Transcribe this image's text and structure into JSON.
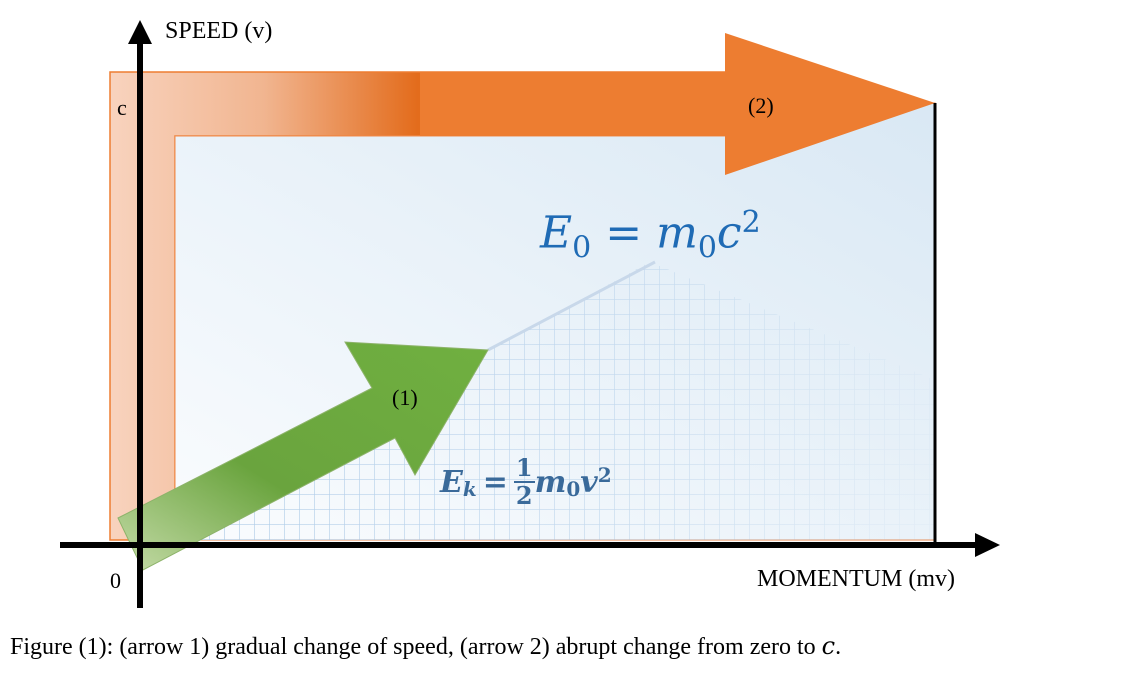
{
  "axes": {
    "y_label": "SPEED (v)",
    "x_label": "MOMENTUM (mv)",
    "origin": "0",
    "c_label": "c"
  },
  "arrows": {
    "arrow1_label": "(1)",
    "arrow2_label": "(2)"
  },
  "formulas": {
    "rest_energy": {
      "lhs": "E",
      "lhs_sub": "0",
      "eq": "=",
      "m": "m",
      "m_sub": "0",
      "var": "c",
      "exp": "2"
    },
    "kinetic_energy": {
      "lhs": "E",
      "lhs_sub": "k",
      "eq": "=",
      "num": "1",
      "den": "2",
      "m": "m",
      "m_sub": "0",
      "var": "v",
      "exp": "2"
    }
  },
  "caption": {
    "text": "Figure (1): (arrow 1) gradual change of speed, (arrow 2) abrupt change from zero to ",
    "var": "c",
    "end": "."
  },
  "colors": {
    "orange": "#ED7D31",
    "green": "#70AD47",
    "formula_blue": "#1F6BB5",
    "formula_dark": "#3A6A9A"
  }
}
